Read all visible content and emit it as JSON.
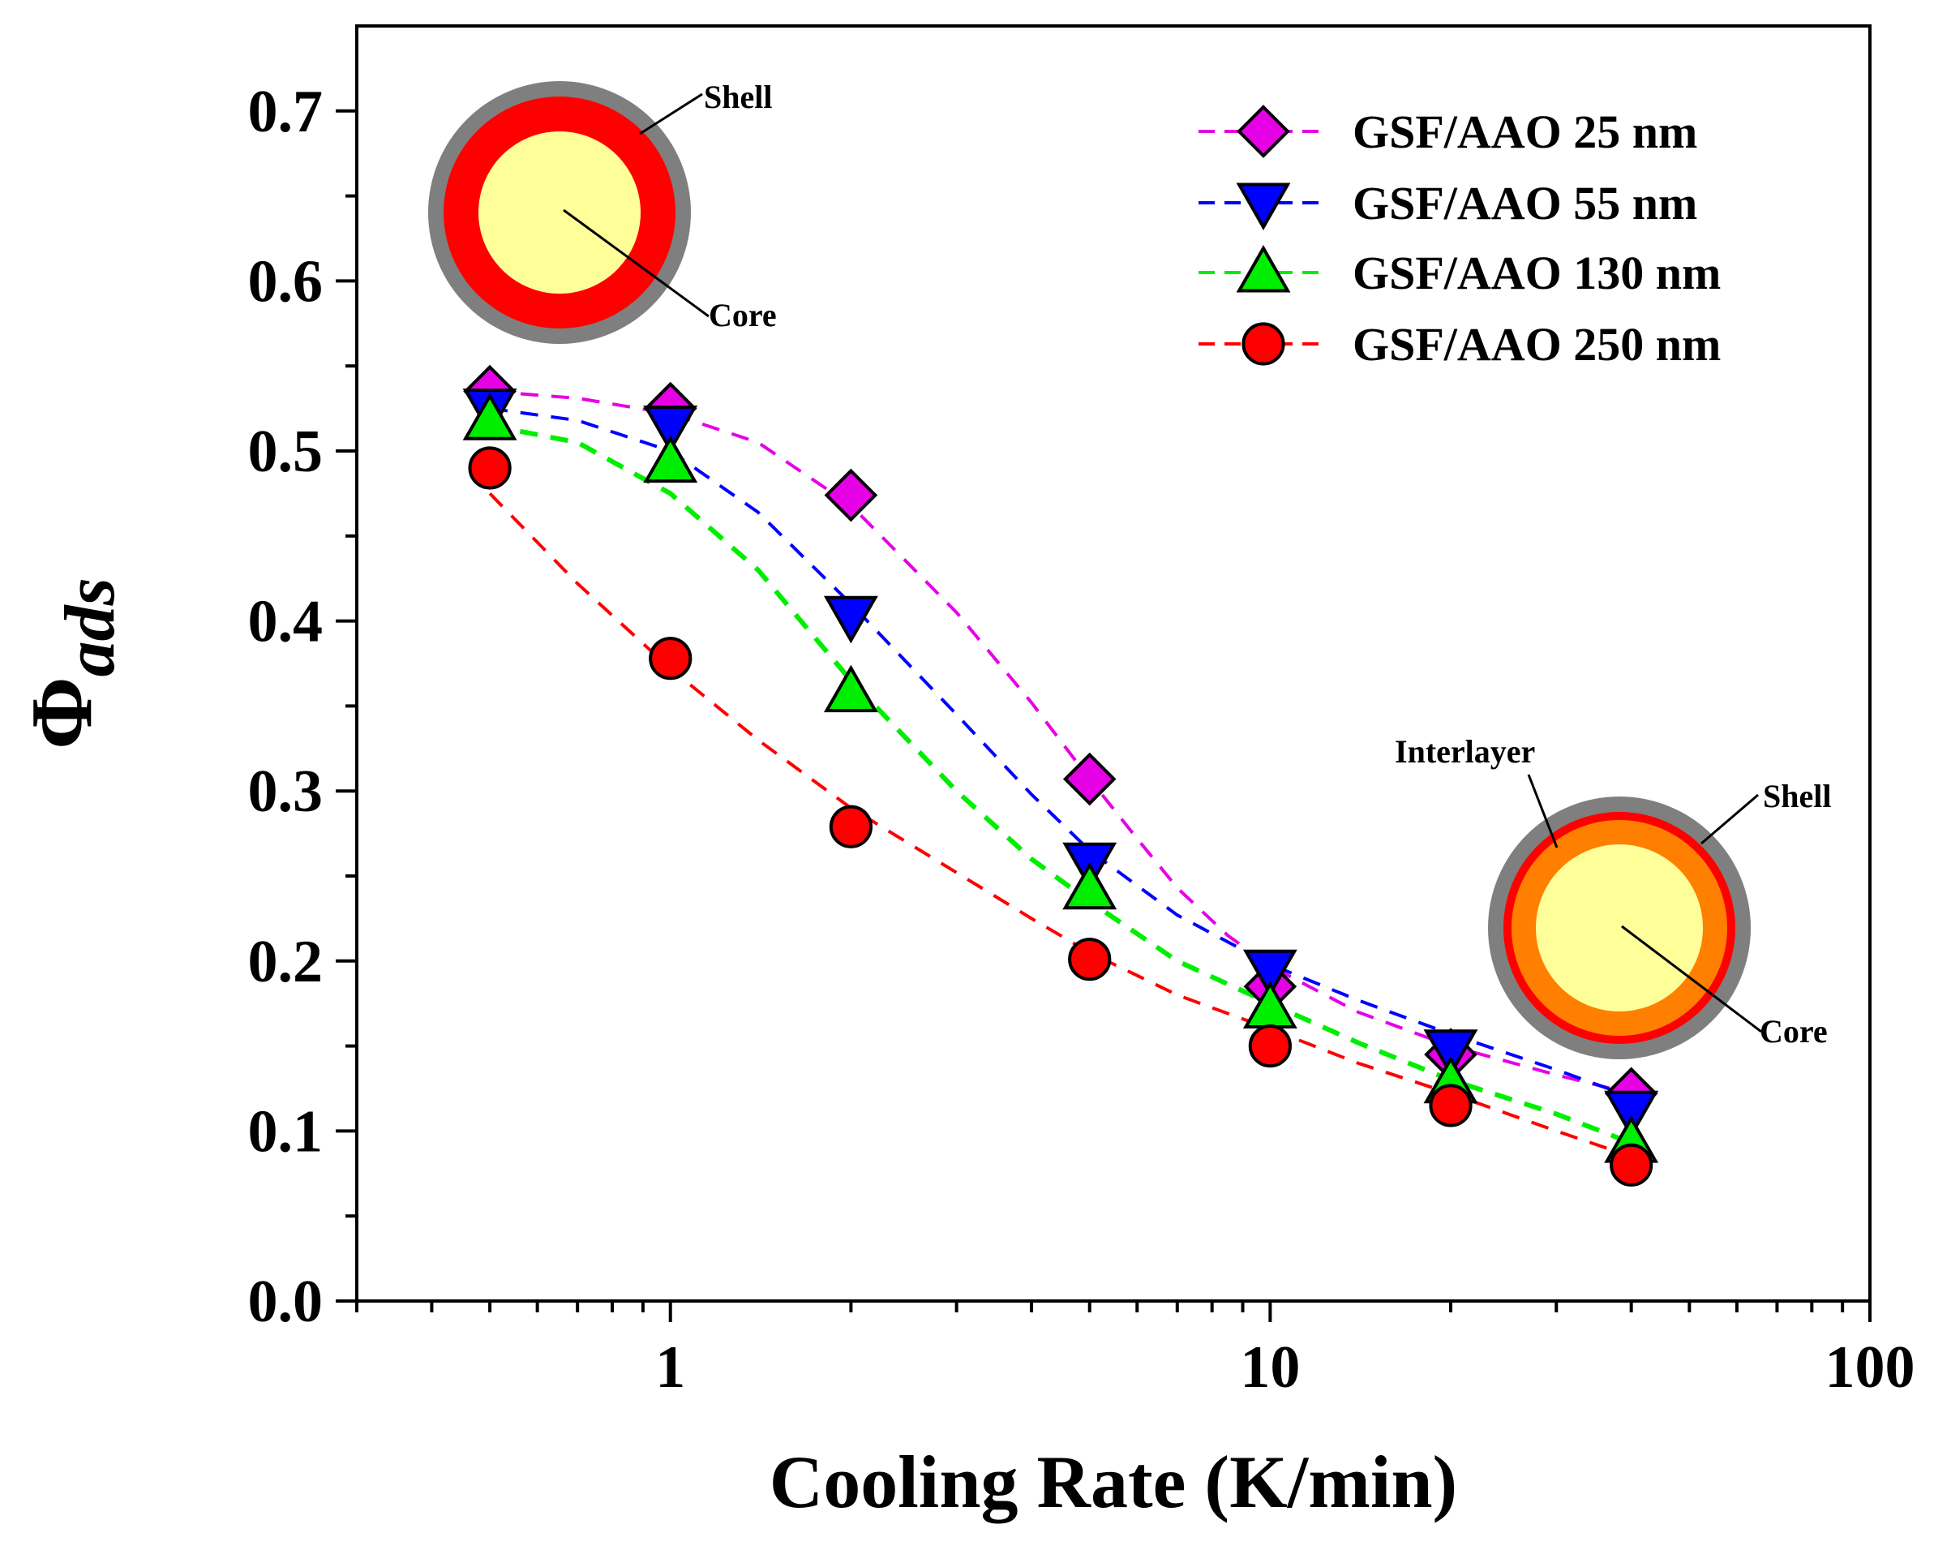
{
  "chart_data": {
    "type": "scatter",
    "title": "",
    "xlabel": "Cooling Rate (K/min)",
    "ylabel_symbol": "Φ",
    "ylabel_subscript": "ads",
    "xscale": "log",
    "xlim": [
      0.3,
      100
    ],
    "ylim": [
      0,
      0.75
    ],
    "x_ticks": [
      1,
      10,
      100
    ],
    "x_tick_labels": [
      "1",
      "10",
      "100"
    ],
    "y_ticks": [
      0.0,
      0.1,
      0.2,
      0.3,
      0.4,
      0.5,
      0.6,
      0.7
    ],
    "y_tick_labels": [
      "0.0",
      "0.1",
      "0.2",
      "0.3",
      "0.4",
      "0.5",
      "0.6",
      "0.7"
    ],
    "legend_position": "top-right",
    "series": [
      {
        "name": "GSF/AAO 25 nm",
        "marker": "diamond",
        "color": "#e600e6",
        "x": [
          0.5,
          1,
          2,
          5,
          10,
          20,
          40
        ],
        "y": [
          0.535,
          0.525,
          0.474,
          0.307,
          0.185,
          0.145,
          0.122
        ],
        "fit": [
          [
            0.5,
            0.535
          ],
          [
            0.7,
            0.531
          ],
          [
            1,
            0.522
          ],
          [
            1.4,
            0.505
          ],
          [
            2,
            0.468
          ],
          [
            3,
            0.405
          ],
          [
            4,
            0.352
          ],
          [
            5,
            0.307
          ],
          [
            6,
            0.272
          ],
          [
            7,
            0.243
          ],
          [
            8.5,
            0.215
          ],
          [
            10,
            0.197
          ],
          [
            14,
            0.17
          ],
          [
            20,
            0.15
          ],
          [
            30,
            0.133
          ],
          [
            40,
            0.122
          ]
        ]
      },
      {
        "name": "GSF/AAO 55 nm",
        "marker": "triangle-down",
        "color": "#0000ff",
        "x": [
          0.5,
          1,
          2,
          5,
          10,
          20,
          40
        ],
        "y": [
          0.525,
          0.515,
          0.403,
          0.258,
          0.195,
          0.148,
          0.112
        ],
        "fit": [
          [
            0.5,
            0.525
          ],
          [
            0.7,
            0.518
          ],
          [
            1,
            0.5
          ],
          [
            1.4,
            0.464
          ],
          [
            2,
            0.41
          ],
          [
            3,
            0.345
          ],
          [
            4,
            0.298
          ],
          [
            5,
            0.265
          ],
          [
            7,
            0.227
          ],
          [
            10,
            0.198
          ],
          [
            14,
            0.177
          ],
          [
            20,
            0.157
          ],
          [
            30,
            0.136
          ],
          [
            40,
            0.12
          ]
        ]
      },
      {
        "name": "GSF/AAO 130 nm",
        "marker": "triangle-up",
        "color": "#00ee00",
        "x": [
          0.5,
          1,
          2,
          5,
          10,
          20,
          40
        ],
        "y": [
          0.518,
          0.493,
          0.358,
          0.242,
          0.172,
          0.128,
          0.093
        ],
        "fit": [
          [
            0.5,
            0.515
          ],
          [
            0.7,
            0.505
          ],
          [
            1,
            0.475
          ],
          [
            1.4,
            0.43
          ],
          [
            2,
            0.365
          ],
          [
            3,
            0.3
          ],
          [
            4,
            0.26
          ],
          [
            5,
            0.235
          ],
          [
            7,
            0.2
          ],
          [
            10,
            0.175
          ],
          [
            14,
            0.152
          ],
          [
            20,
            0.13
          ],
          [
            30,
            0.11
          ],
          [
            40,
            0.093
          ]
        ]
      },
      {
        "name": "GSF/AAO 250 nm",
        "marker": "circle",
        "color": "#ff0000",
        "x": [
          0.5,
          1,
          2,
          5,
          10,
          20,
          40
        ],
        "y": [
          0.49,
          0.378,
          0.279,
          0.201,
          0.15,
          0.115,
          0.08
        ],
        "fit": [
          [
            0.5,
            0.475
          ],
          [
            0.7,
            0.422
          ],
          [
            1,
            0.372
          ],
          [
            1.4,
            0.33
          ],
          [
            2,
            0.29
          ],
          [
            3,
            0.252
          ],
          [
            4,
            0.225
          ],
          [
            5,
            0.205
          ],
          [
            7,
            0.18
          ],
          [
            10,
            0.16
          ],
          [
            14,
            0.14
          ],
          [
            20,
            0.122
          ],
          [
            30,
            0.1
          ],
          [
            40,
            0.085
          ]
        ]
      }
    ],
    "annotations": {
      "top_shell": "Shell",
      "top_core": "Core",
      "bottom_interlayer": "Interlayer",
      "bottom_shell": "Shell",
      "bottom_core": "Core"
    }
  }
}
